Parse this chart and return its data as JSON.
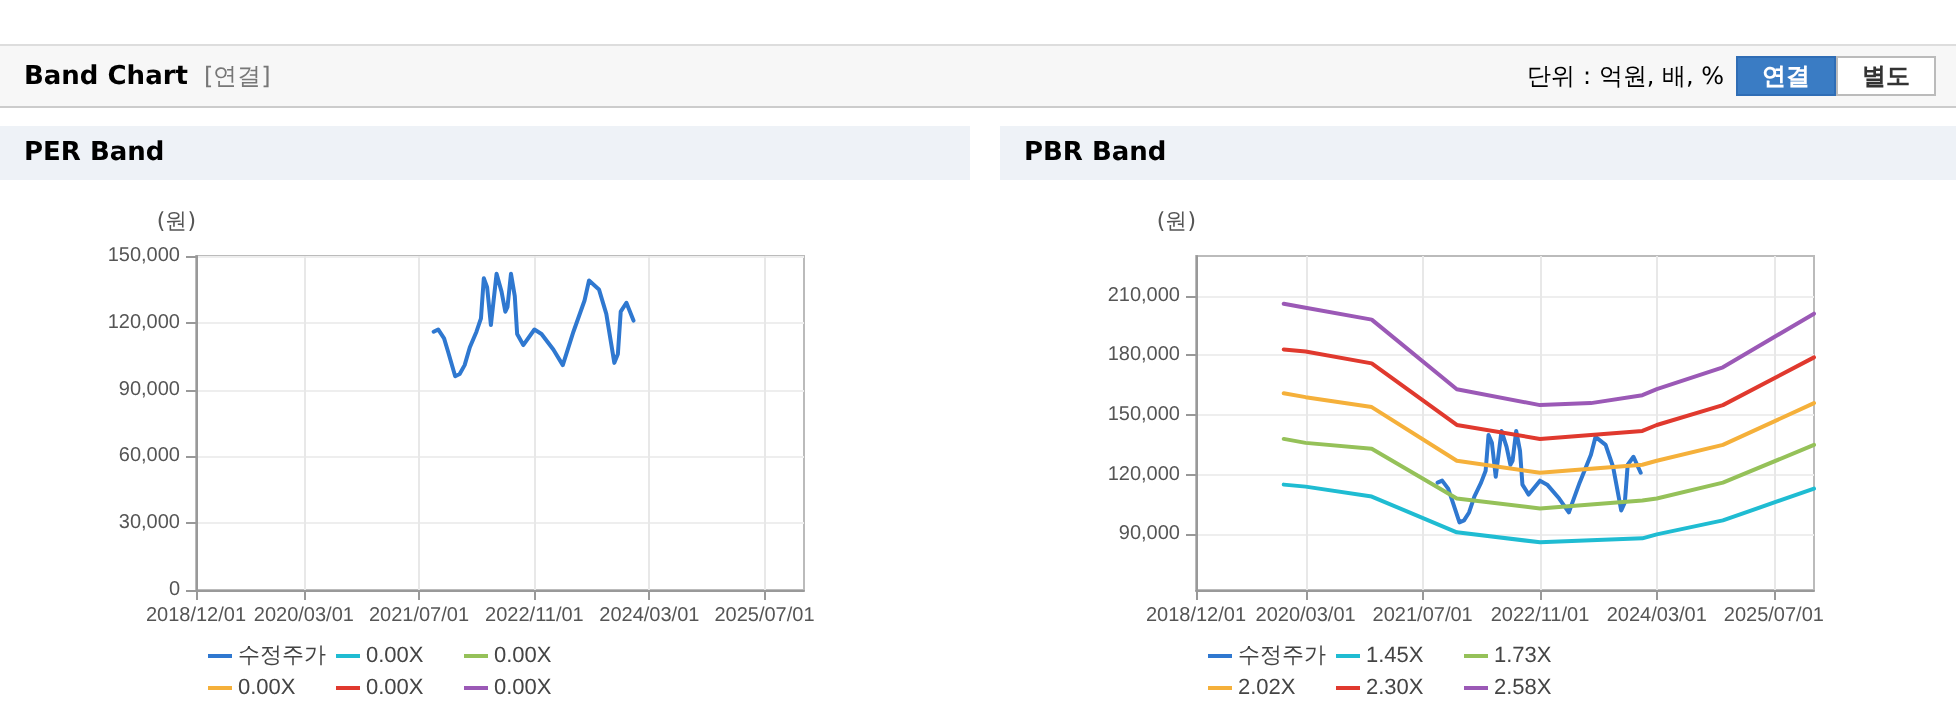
{
  "chart_data": [
    {
      "type": "other",
      "title": "Band Chart",
      "subtitle": "[연결]",
      "annotations": [
        "단위 : 억원, 배, %",
        "연결",
        "별도"
      ]
    },
    {
      "type": "line",
      "title": "PER Band",
      "ylabel": "(원)",
      "xlim": [
        "2018-12-01",
        "2025-12-15"
      ],
      "ylim": [
        0,
        150000
      ],
      "yticks": [
        {
          "value": 0,
          "label": "0"
        },
        {
          "value": 30000,
          "label": "30,000"
        },
        {
          "value": 60000,
          "label": "60,000"
        },
        {
          "value": 90000,
          "label": "90,000"
        },
        {
          "value": 120000,
          "label": "120,000"
        },
        {
          "value": 150000,
          "label": "150,000"
        }
      ],
      "xticks": [
        {
          "value": "2018-12-01",
          "label": "2018/12/01"
        },
        {
          "value": "2020-03-01",
          "label": "2020/03/01"
        },
        {
          "value": "2021-07-01",
          "label": "2021/07/01"
        },
        {
          "value": "2022-11-01",
          "label": "2022/11/01"
        },
        {
          "value": "2024-03-01",
          "label": "2024/03/01"
        },
        {
          "value": "2025-07-01",
          "label": "2025/07/01"
        }
      ],
      "grid": true,
      "legend": "bottom",
      "marker": "none",
      "line_style": "solid",
      "series": [
        {
          "name": "수정주가",
          "color": "#2f78d0",
          "x": [
            "2021-09-01",
            "2021-09-20",
            "2021-10-15",
            "2021-11-01",
            "2021-12-01",
            "2021-12-20",
            "2022-01-10",
            "2022-02-01",
            "2022-03-01",
            "2022-03-20",
            "2022-04-01",
            "2022-04-15",
            "2022-05-01",
            "2022-05-25",
            "2022-06-15",
            "2022-07-01",
            "2022-07-10",
            "2022-07-25",
            "2022-08-10",
            "2022-08-20",
            "2022-09-15",
            "2022-11-01",
            "2022-12-01",
            "2023-01-20",
            "2023-03-01",
            "2023-04-15",
            "2023-06-01",
            "2023-06-20",
            "2023-08-01",
            "2023-09-01",
            "2023-10-05",
            "2023-10-20",
            "2023-11-01",
            "2023-11-25",
            "2023-12-25"
          ],
          "values": [
            116000,
            117000,
            113000,
            107000,
            96000,
            97000,
            101000,
            109000,
            116000,
            122000,
            140000,
            136000,
            119000,
            142000,
            134000,
            125000,
            127000,
            142000,
            132000,
            115000,
            110000,
            117000,
            115000,
            108000,
            101000,
            116000,
            130000,
            139000,
            135000,
            124000,
            102000,
            106000,
            125000,
            129000,
            121000
          ]
        },
        {
          "name": "0.00X",
          "color": "#1fbcd2"
        },
        {
          "name": "0.00X",
          "color": "#95c159"
        },
        {
          "name": "0.00X",
          "color": "#f5b03a"
        },
        {
          "name": "0.00X",
          "color": "#e0392e"
        },
        {
          "name": "0.00X",
          "color": "#9b59b6"
        }
      ]
    },
    {
      "type": "line",
      "title": "PBR Band",
      "ylabel": "(원)",
      "xlim": [
        "2018-12-01",
        "2025-12-15"
      ],
      "ylim": [
        62000,
        230000
      ],
      "yticks": [
        {
          "value": 90000,
          "label": "90,000"
        },
        {
          "value": 120000,
          "label": "120,000"
        },
        {
          "value": 150000,
          "label": "150,000"
        },
        {
          "value": 180000,
          "label": "180,000"
        },
        {
          "value": 210000,
          "label": "210,000"
        }
      ],
      "xticks": [
        {
          "value": "2018-12-01",
          "label": "2018/12/01"
        },
        {
          "value": "2020-03-01",
          "label": "2020/03/01"
        },
        {
          "value": "2021-07-01",
          "label": "2021/07/01"
        },
        {
          "value": "2022-11-01",
          "label": "2022/11/01"
        },
        {
          "value": "2024-03-01",
          "label": "2024/03/01"
        },
        {
          "value": "2025-07-01",
          "label": "2025/07/01"
        }
      ],
      "grid": true,
      "legend": "bottom",
      "marker": "none",
      "line_style": "solid",
      "series": [
        {
          "name": "수정주가",
          "color": "#2f78d0",
          "x": [
            "2021-09-01",
            "2021-09-20",
            "2021-10-15",
            "2021-11-01",
            "2021-12-01",
            "2021-12-20",
            "2022-01-10",
            "2022-02-01",
            "2022-03-01",
            "2022-03-20",
            "2022-04-01",
            "2022-04-15",
            "2022-05-01",
            "2022-05-25",
            "2022-06-15",
            "2022-07-01",
            "2022-07-10",
            "2022-07-25",
            "2022-08-10",
            "2022-08-20",
            "2022-09-15",
            "2022-11-01",
            "2022-12-01",
            "2023-01-20",
            "2023-03-01",
            "2023-04-15",
            "2023-06-01",
            "2023-06-20",
            "2023-08-01",
            "2023-09-01",
            "2023-10-05",
            "2023-10-20",
            "2023-11-01",
            "2023-11-25",
            "2023-12-25"
          ],
          "values": [
            116000,
            117000,
            113000,
            107000,
            96000,
            97000,
            101000,
            109000,
            116000,
            122000,
            140000,
            136000,
            119000,
            142000,
            134000,
            125000,
            127000,
            142000,
            132000,
            115000,
            110000,
            117000,
            115000,
            108000,
            101000,
            116000,
            130000,
            139000,
            135000,
            124000,
            102000,
            106000,
            125000,
            129000,
            121000
          ]
        },
        {
          "name": "1.45X",
          "color": "#1fbcd2",
          "values": [
            115000,
            114000,
            109000,
            91000,
            86000,
            87000,
            88000,
            90000,
            97000,
            113000
          ]
        },
        {
          "name": "1.73X",
          "color": "#95c159",
          "values": [
            138000,
            136000,
            133000,
            108000,
            103000,
            105000,
            107000,
            108000,
            116000,
            135000
          ]
        },
        {
          "name": "2.02X",
          "color": "#f5b03a",
          "values": [
            161000,
            159000,
            154000,
            127000,
            121000,
            123000,
            125000,
            127000,
            135000,
            156000
          ]
        },
        {
          "name": "2.30X",
          "color": "#e0392e",
          "values": [
            183000,
            182000,
            176000,
            145000,
            138000,
            140000,
            142000,
            145000,
            155000,
            179000
          ]
        },
        {
          "name": "2.58X",
          "color": "#9b59b6",
          "values": [
            206000,
            204000,
            198000,
            163000,
            155000,
            156000,
            160000,
            163000,
            174000,
            201000
          ]
        }
      ],
      "x": [
        "2019-12-01",
        "2020-03-01",
        "2020-12-01",
        "2021-11-20",
        "2022-11-01",
        "2023-06-01",
        "2024-01-01",
        "2024-03-01",
        "2024-12-01",
        "2025-12-15"
      ]
    }
  ]
}
